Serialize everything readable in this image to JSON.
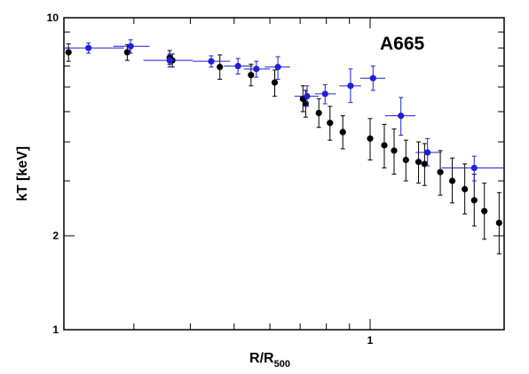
{
  "chart_data": {
    "type": "scatter",
    "annotation": "A665",
    "xlabel_main": "R/R",
    "xlabel_sub": "500",
    "ylabel": "kT [keV]",
    "xscale": "log",
    "yscale": "log",
    "xlim": [
      0.21,
      1.98
    ],
    "ylim": [
      1,
      10
    ],
    "x_tick_labels": [
      {
        "value": 1,
        "label": "1"
      }
    ],
    "y_tick_labels": [
      {
        "value": 1,
        "label": "1"
      },
      {
        "value": 2,
        "label": "2"
      },
      {
        "value": 10,
        "label": "10"
      }
    ],
    "grid": false,
    "legend": "none",
    "series": [
      {
        "color": "#000000",
        "points": [
          {
            "x": 0.215,
            "y": 7.75,
            "ylo": 7.25,
            "yhi": 8.25
          },
          {
            "x": 0.29,
            "y": 7.75,
            "ylo": 7.3,
            "yhi": 8.2
          },
          {
            "x": 0.36,
            "y": 7.45,
            "ylo": 7.1,
            "yhi": 7.85
          },
          {
            "x": 0.365,
            "y": 7.3,
            "ylo": 6.95,
            "yhi": 7.65
          },
          {
            "x": 0.465,
            "y": 6.95,
            "ylo": 6.35,
            "yhi": 7.6
          },
          {
            "x": 0.545,
            "y": 6.55,
            "ylo": 6.05,
            "yhi": 7.1
          },
          {
            "x": 0.615,
            "y": 6.2,
            "ylo": 5.6,
            "yhi": 6.8
          },
          {
            "x": 0.71,
            "y": 5.5,
            "ylo": 5.0,
            "yhi": 6.05
          },
          {
            "x": 0.72,
            "y": 5.3,
            "ylo": 4.8,
            "yhi": 5.85
          },
          {
            "x": 0.77,
            "y": 4.95,
            "ylo": 4.45,
            "yhi": 5.5
          },
          {
            "x": 0.815,
            "y": 4.6,
            "ylo": 4.05,
            "yhi": 5.2
          },
          {
            "x": 0.87,
            "y": 4.3,
            "ylo": 3.8,
            "yhi": 4.85
          },
          {
            "x": 1.0,
            "y": 4.1,
            "ylo": 3.5,
            "yhi": 4.75
          },
          {
            "x": 1.075,
            "y": 3.9,
            "ylo": 3.3,
            "yhi": 4.55
          },
          {
            "x": 1.13,
            "y": 3.75,
            "ylo": 3.15,
            "yhi": 4.4
          },
          {
            "x": 1.2,
            "y": 3.5,
            "ylo": 3.0,
            "yhi": 4.05
          },
          {
            "x": 1.28,
            "y": 3.45,
            "ylo": 2.95,
            "yhi": 4.0
          },
          {
            "x": 1.32,
            "y": 3.4,
            "ylo": 2.9,
            "yhi": 3.95
          },
          {
            "x": 1.43,
            "y": 3.2,
            "ylo": 2.7,
            "yhi": 3.75
          },
          {
            "x": 1.52,
            "y": 3.0,
            "ylo": 2.55,
            "yhi": 3.55
          },
          {
            "x": 1.62,
            "y": 2.82,
            "ylo": 2.35,
            "yhi": 3.4
          },
          {
            "x": 1.7,
            "y": 2.6,
            "ylo": 2.15,
            "yhi": 3.15
          },
          {
            "x": 1.79,
            "y": 2.4,
            "ylo": 1.95,
            "yhi": 2.95
          },
          {
            "x": 1.93,
            "y": 2.2,
            "ylo": 1.75,
            "yhi": 2.75
          }
        ]
      },
      {
        "color": "#1f1fd6",
        "points": [
          {
            "x": 0.238,
            "y": 8.0,
            "xlo": 0.193,
            "xhi": 0.285,
            "ylo": 7.7,
            "yhi": 8.3
          },
          {
            "x": 0.295,
            "y": 8.1,
            "xlo": 0.27,
            "xhi": 0.325,
            "ylo": 7.7,
            "yhi": 8.5
          },
          {
            "x": 0.36,
            "y": 7.3,
            "xlo": 0.315,
            "xhi": 0.405,
            "ylo": 6.95,
            "yhi": 7.65
          },
          {
            "x": 0.445,
            "y": 7.25,
            "xlo": 0.405,
            "xhi": 0.49,
            "ylo": 6.95,
            "yhi": 7.55
          },
          {
            "x": 0.51,
            "y": 7.0,
            "xlo": 0.475,
            "xhi": 0.55,
            "ylo": 6.6,
            "yhi": 7.4
          },
          {
            "x": 0.56,
            "y": 6.85,
            "xlo": 0.525,
            "xhi": 0.6,
            "ylo": 6.45,
            "yhi": 7.25
          },
          {
            "x": 0.625,
            "y": 6.95,
            "xlo": 0.585,
            "xhi": 0.665,
            "ylo": 6.35,
            "yhi": 7.5
          },
          {
            "x": 0.725,
            "y": 5.6,
            "xlo": 0.68,
            "xhi": 0.77,
            "ylo": 5.2,
            "yhi": 6.05
          },
          {
            "x": 0.795,
            "y": 5.7,
            "xlo": 0.755,
            "xhi": 0.84,
            "ylo": 5.3,
            "yhi": 6.1
          },
          {
            "x": 0.905,
            "y": 6.05,
            "xlo": 0.855,
            "xhi": 0.955,
            "ylo": 5.35,
            "yhi": 6.85
          },
          {
            "x": 1.015,
            "y": 6.4,
            "xlo": 0.95,
            "xhi": 1.08,
            "ylo": 5.85,
            "yhi": 7.0
          },
          {
            "x": 1.17,
            "y": 4.85,
            "xlo": 1.08,
            "xhi": 1.26,
            "ylo": 4.2,
            "yhi": 5.55
          },
          {
            "x": 1.34,
            "y": 3.7,
            "xlo": 1.26,
            "xhi": 1.44,
            "ylo": 3.35,
            "yhi": 4.1
          },
          {
            "x": 1.7,
            "y": 3.3,
            "xlo": 1.44,
            "xhi": 1.98,
            "ylo": 3.0,
            "yhi": 3.6
          }
        ]
      }
    ]
  }
}
